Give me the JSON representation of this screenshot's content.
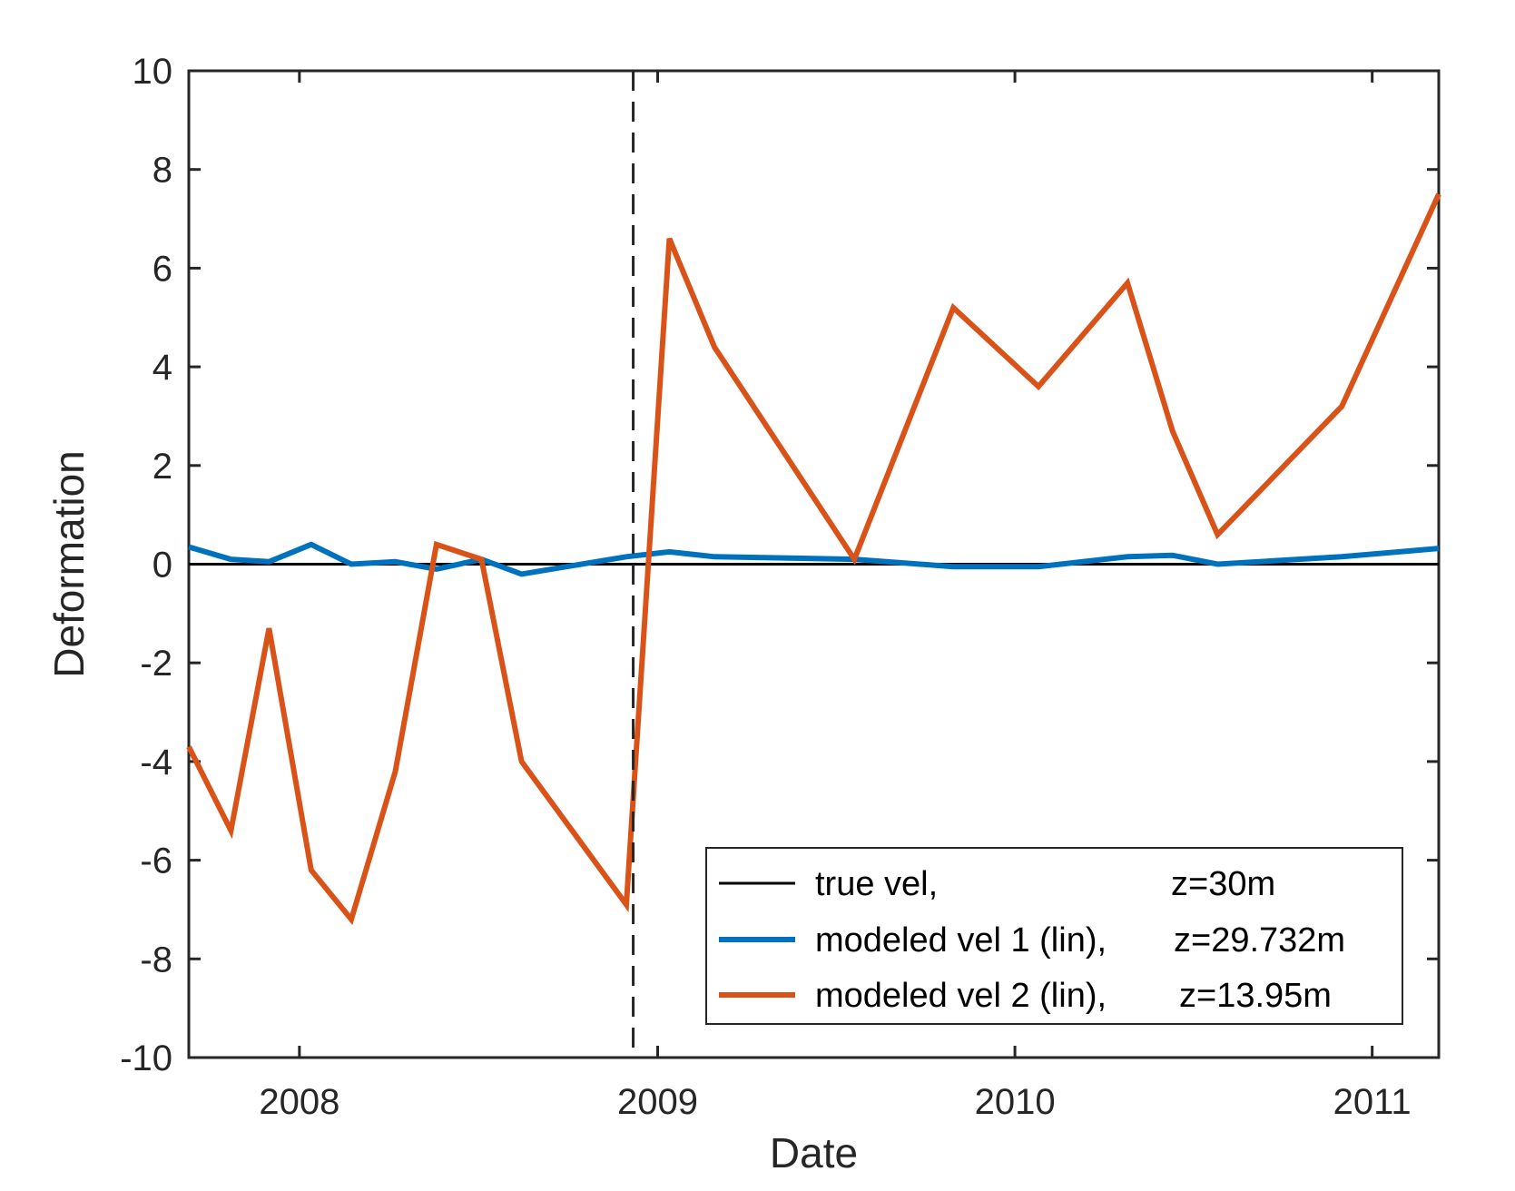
{
  "chart_data": {
    "type": "line",
    "xlabel": "Date",
    "ylabel": "Deformation",
    "xlim": [
      "2007-09-10",
      "2011-03-10"
    ],
    "ylim": [
      -10,
      10
    ],
    "yticks": [
      -10,
      -8,
      -6,
      -4,
      -2,
      0,
      2,
      4,
      6,
      8,
      10
    ],
    "ytick_labels": [
      "-10",
      "-8",
      "-6",
      "-4",
      "-2",
      "0",
      "2",
      "4",
      "6",
      "8",
      "10"
    ],
    "xticks": [
      "2008-01-01",
      "2009-01-01",
      "2010-01-01",
      "2011-01-01"
    ],
    "xtick_labels": [
      "2008",
      "2009",
      "2010",
      "2011"
    ],
    "grid": false,
    "legend_position": "bottom-right",
    "vline": {
      "x": "2008-12-07",
      "style": "dashed",
      "color": "#262626"
    },
    "series": [
      {
        "name": "true vel,",
        "suffix": "z=30m",
        "color": "#000000",
        "x": [
          "2007-09-10",
          "2011-03-10"
        ],
        "y": [
          0,
          0
        ]
      },
      {
        "name": "modeled vel 1 (lin),",
        "suffix": "z=29.732m",
        "color": "#0072BD",
        "x": [
          "2007-09-10",
          "2007-10-23",
          "2007-12-01",
          "2008-01-13",
          "2008-02-23",
          "2008-04-08",
          "2008-05-20",
          "2008-07-05",
          "2008-08-15",
          "2008-11-30",
          "2009-01-13",
          "2009-02-28",
          "2009-07-21",
          "2009-10-30",
          "2010-01-25",
          "2010-04-26",
          "2010-06-11",
          "2010-07-27",
          "2010-12-01",
          "2011-03-10"
        ],
        "y": [
          0.35,
          0.1,
          0.05,
          0.4,
          0.0,
          0.05,
          -0.1,
          0.1,
          -0.2,
          0.15,
          0.25,
          0.15,
          0.1,
          -0.05,
          -0.05,
          0.15,
          0.18,
          0.0,
          0.15,
          0.32
        ]
      },
      {
        "name": "modeled vel 2 (lin),",
        "suffix": "z=13.95m",
        "color": "#D95319",
        "x": [
          "2007-09-10",
          "2007-10-23",
          "2007-12-01",
          "2008-01-13",
          "2008-02-23",
          "2008-04-08",
          "2008-05-20",
          "2008-07-05",
          "2008-08-15",
          "2008-11-30",
          "2009-01-13",
          "2009-02-28",
          "2009-07-21",
          "2009-10-30",
          "2010-01-25",
          "2010-04-26",
          "2010-06-11",
          "2010-07-27",
          "2010-12-01",
          "2011-03-10"
        ],
        "y": [
          -3.7,
          -5.4,
          -1.3,
          -6.2,
          -7.2,
          -4.2,
          0.4,
          0.1,
          -4.0,
          -6.9,
          6.6,
          4.4,
          0.1,
          5.2,
          3.6,
          5.7,
          2.7,
          0.6,
          3.2,
          7.5
        ]
      }
    ]
  }
}
